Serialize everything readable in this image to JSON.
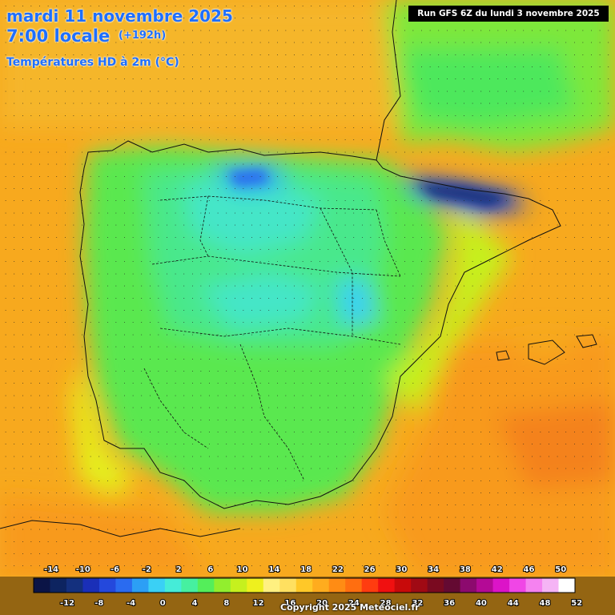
{
  "header": {
    "date_line": "mardi 11 novembre 2025",
    "time_line": "7:00 locale",
    "lead_time": "(+192h)",
    "field": "Températures HD à 2m (°C)"
  },
  "run_info": "Run GFS 6Z du lundi 3 novembre 2025",
  "footer": {
    "copyright": "Copyright 2025 Meteociel.fr"
  },
  "legend": {
    "top_ticks": [
      "-14",
      "-10",
      "-6",
      "-2",
      "2",
      "6",
      "10",
      "14",
      "18",
      "22",
      "26",
      "30",
      "34",
      "38",
      "42",
      "46",
      "50"
    ],
    "bottom_ticks": [
      "-12",
      "-8",
      "-4",
      "0",
      "4",
      "8",
      "12",
      "16",
      "20",
      "24",
      "28",
      "32",
      "36",
      "40",
      "44",
      "48",
      "52"
    ],
    "colors": [
      "#0b1446",
      "#0d2460",
      "#14307e",
      "#1a2fb8",
      "#2448dc",
      "#2a6bf0",
      "#2c9ff5",
      "#3ad0f5",
      "#45ecd8",
      "#46f0a0",
      "#54ee5a",
      "#92ee2e",
      "#c6f01e",
      "#eef01e",
      "#fff080",
      "#ffe060",
      "#ffc828",
      "#ffac1e",
      "#ff8c14",
      "#ff6e10",
      "#ff3c10",
      "#f01010",
      "#c80a0a",
      "#a00a14",
      "#7a0a20",
      "#640a32",
      "#8c0a6e",
      "#b40a96",
      "#dc14c8",
      "#f046e6",
      "#f582f0",
      "#f5b4f5",
      "#ffffff"
    ]
  }
}
